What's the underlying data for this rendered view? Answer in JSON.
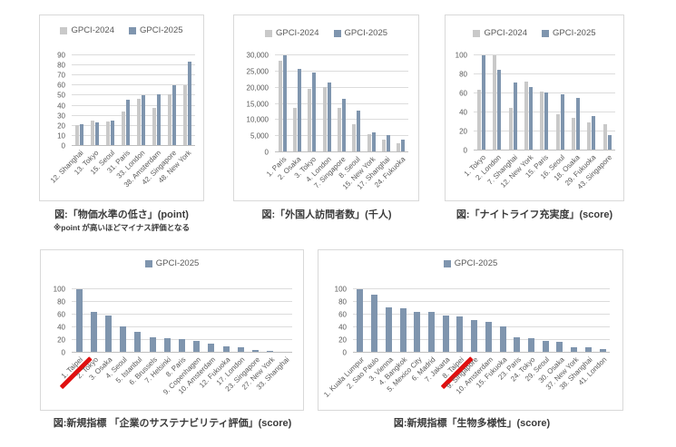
{
  "colors": {
    "gpci2024": "#c9c9c9",
    "gpci2025": "#7f95ae",
    "gridline": "#dcdcdc",
    "panel_border": "#d9d9d9",
    "tick_text": "#595959",
    "caption_text": "#3b3b3b",
    "strike_red": "#e01010"
  },
  "chart_data": [
    {
      "id": "price-level",
      "type": "bar",
      "title": "図:「物価水準の低さ」(point)",
      "note": "※point が高いほどマイナス評価となる",
      "legend_position": "top",
      "grid": true,
      "ylim": [
        0,
        90
      ],
      "yticks": [
        {
          "v": 0,
          "label": "0"
        },
        {
          "v": 10,
          "label": "10"
        },
        {
          "v": 20,
          "label": "20"
        },
        {
          "v": 30,
          "label": "30"
        },
        {
          "v": 40,
          "label": "40"
        },
        {
          "v": 50,
          "label": "50"
        },
        {
          "v": 60,
          "label": "60"
        },
        {
          "v": 70,
          "label": "70"
        },
        {
          "v": 80,
          "label": "80"
        },
        {
          "v": 90,
          "label": "90"
        }
      ],
      "categories": [
        "12. Shanghai",
        "13. Tokyo",
        "15. Seoul",
        "31. Paris",
        "33. London",
        "38. Amsterdam",
        "42. Singapore",
        "48. New York"
      ],
      "series": [
        {
          "name": "GPCI-2024",
          "color": "#c9c9c9",
          "values": [
            21,
            25.5,
            24,
            34,
            47,
            38,
            51,
            60
          ]
        },
        {
          "name": "GPCI-2025",
          "color": "#7f95ae",
          "values": [
            21.5,
            23.5,
            25.5,
            45.5,
            50,
            51,
            60,
            84
          ]
        }
      ],
      "strike_label": null
    },
    {
      "id": "foreign-visitors",
      "type": "bar",
      "title": "図:「外国人訪問者数」(千人)",
      "note": null,
      "legend_position": "top",
      "grid": true,
      "ylim": [
        0,
        30000
      ],
      "yticks": [
        {
          "v": 0,
          "label": "0"
        },
        {
          "v": 5000,
          "label": "5,000"
        },
        {
          "v": 10000,
          "label": "10,000"
        },
        {
          "v": 15000,
          "label": "15,000"
        },
        {
          "v": 20000,
          "label": "20,000"
        },
        {
          "v": 25000,
          "label": "25,000"
        },
        {
          "v": 30000,
          "label": "30,000"
        }
      ],
      "categories": [
        "1. Paris",
        "2. Osaka",
        "3. Tokyo",
        "4. London",
        "7. Singapore",
        "8. Seoul",
        "15. New York",
        "17. Shanghai",
        "24. Fukuoka"
      ],
      "series": [
        {
          "name": "GPCI-2024",
          "color": "#c9c9c9",
          "values": [
            28300,
            13700,
            19500,
            20200,
            13700,
            8800,
            5700,
            3800,
            2900
          ]
        },
        {
          "name": "GPCI-2025",
          "color": "#7f95ae",
          "values": [
            30000,
            25800,
            24800,
            21500,
            16500,
            12900,
            6100,
            5300,
            3900
          ]
        }
      ],
      "strike_label": null
    },
    {
      "id": "nightlife",
      "type": "bar",
      "title": "図:「ナイトライフ充実度」(score)",
      "note": null,
      "legend_position": "top",
      "grid": true,
      "ylim": [
        0,
        100
      ],
      "yticks": [
        {
          "v": 0,
          "label": "0"
        },
        {
          "v": 20,
          "label": "20"
        },
        {
          "v": 40,
          "label": "40"
        },
        {
          "v": 60,
          "label": "60"
        },
        {
          "v": 80,
          "label": "80"
        },
        {
          "v": 100,
          "label": "100"
        }
      ],
      "categories": [
        "1. Tokyo",
        "2. London",
        "7. Shanghai",
        "12. New York",
        "15. Paris",
        "16. Seoul",
        "18. Osaka",
        "29. Fukuoka",
        "43. Singapore"
      ],
      "series": [
        {
          "name": "GPCI-2024",
          "color": "#c9c9c9",
          "values": [
            64,
            100,
            45,
            72,
            62,
            38,
            34,
            30,
            28
          ]
        },
        {
          "name": "GPCI-2025",
          "color": "#7f95ae",
          "values": [
            100,
            85,
            71,
            67,
            61,
            59,
            55,
            36,
            16
          ]
        }
      ],
      "strike_label": null
    },
    {
      "id": "corporate-sustainability",
      "type": "bar",
      "title": "図:新規指標 「企業のサステナビリティ評価」(score)",
      "note": null,
      "legend_position": "top",
      "grid": true,
      "ylim": [
        0,
        100
      ],
      "yticks": [
        {
          "v": 0,
          "label": "0"
        },
        {
          "v": 20,
          "label": "20"
        },
        {
          "v": 40,
          "label": "40"
        },
        {
          "v": 60,
          "label": "60"
        },
        {
          "v": 80,
          "label": "80"
        },
        {
          "v": 100,
          "label": "100"
        }
      ],
      "categories": [
        "1. Taipei",
        "2. Tokyo",
        "3. Osaka",
        "4. Seoul",
        "5. Istanbul",
        "6. Brussels",
        "7. Helsinki",
        "8. Paris",
        "9. Copenhagen",
        "10. Amsterdam",
        "12. Fukuoka",
        "17. London",
        "23. Singapore",
        "27. New York",
        "33. Shanghai"
      ],
      "series": [
        {
          "name": "GPCI-2025",
          "color": "#7f95ae",
          "values": [
            100,
            65,
            59,
            41,
            33,
            24,
            23,
            21,
            19,
            15,
            10,
            8,
            5,
            3,
            2
          ]
        }
      ],
      "strike_label": "1. Taipei"
    },
    {
      "id": "biodiversity",
      "type": "bar",
      "title": "図:新規指標「生物多様性」(score)",
      "note": null,
      "legend_position": "top",
      "grid": true,
      "ylim": [
        0,
        100
      ],
      "yticks": [
        {
          "v": 0,
          "label": "0"
        },
        {
          "v": 20,
          "label": "20"
        },
        {
          "v": 40,
          "label": "40"
        },
        {
          "v": 60,
          "label": "60"
        },
        {
          "v": 80,
          "label": "80"
        },
        {
          "v": 100,
          "label": "100"
        }
      ],
      "categories": [
        "1. Kuala Lumpur",
        "2. Sao Paulo",
        "3. Vienna",
        "4. Bangkok",
        "5. Mexico City",
        "6. Madrid",
        "7. Jakarta",
        "8. Taipei",
        "9. Singapore",
        "10. Amsterdam",
        "15. Fukuoka",
        "23. Paris",
        "24. Tokyo",
        "29. Seoul",
        "30. Osaka",
        "37. New York",
        "38. Shanghai",
        "41. London"
      ],
      "series": [
        {
          "name": "GPCI-2025",
          "color": "#7f95ae",
          "values": [
            100,
            91,
            71,
            70,
            64,
            64,
            58,
            57,
            52,
            49,
            41,
            25,
            23,
            18,
            17,
            8,
            8,
            6
          ]
        }
      ],
      "strike_label": "8. Taipei"
    }
  ]
}
